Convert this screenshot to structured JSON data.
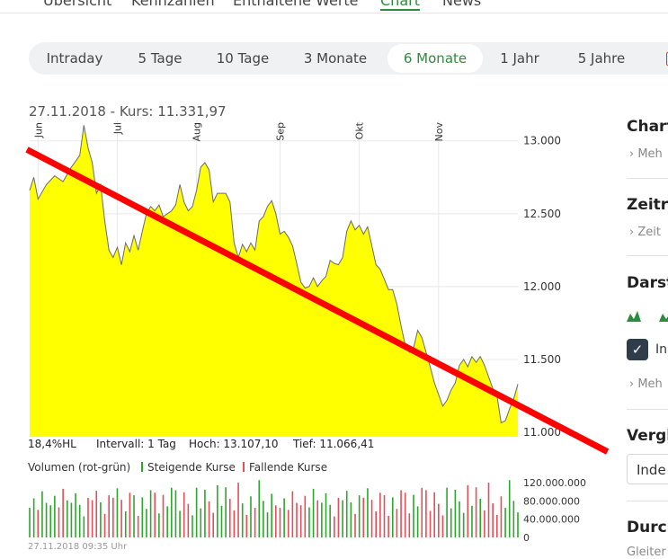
{
  "tabs": {
    "items": [
      "Übersicht",
      "Kennzahlen",
      "Enthaltene Werte",
      "Chart",
      "News"
    ],
    "active": "Chart"
  },
  "ranges": {
    "items": [
      "Intraday",
      "5 Tage",
      "10 Tage",
      "3 Monate",
      "6 Monate",
      "1 Jahr",
      "5 Jahre"
    ],
    "active": "6 Monate"
  },
  "kurs_label": "27.11.2018  - Kurs: 11.331,97",
  "stats": {
    "range": "18,4%HL",
    "interval": "Intervall: 1 Tag",
    "high": "Hoch: 13.107,10",
    "low": "Tief: 11.066,41"
  },
  "volume_legend": {
    "title": "Volumen (rot-grün)",
    "rising": "Steigende Kurse",
    "falling": "Fallende Kurse",
    "rising_color": "#2ea62e",
    "falling_color": "#e0505a"
  },
  "timestamp": "27.11.2018 09:35 Uhr",
  "sidebar": {
    "h1": "Chart",
    "s1": "Meh",
    "h2": "Zeitr",
    "s2": "Zeit",
    "h3": "Darst",
    "check_label": "In",
    "s3": "Meh",
    "h4": "Vergl",
    "select_value": "Inde",
    "h5": "Durch",
    "s5": "Gleiter"
  },
  "chart_data": {
    "type": "area",
    "colors": {
      "fill": "#ffff00",
      "line": "#6a6a6a",
      "trendline": "#ff0000"
    },
    "y_ticks": [
      "13.000",
      "12.500",
      "12.000",
      "11.500",
      "11.000"
    ],
    "y_tick_values": [
      13000,
      12500,
      12000,
      11500,
      11000
    ],
    "ylim": [
      10970,
      13140
    ],
    "month_labels": [
      "Jun",
      "Jul",
      "Aug",
      "Sep",
      "Okt",
      "Nov"
    ],
    "month_index": [
      2,
      21,
      40,
      60,
      79,
      98
    ],
    "n_points": 118,
    "price_keyframes": [
      [
        0,
        12660
      ],
      [
        1,
        12750
      ],
      [
        2,
        12600
      ],
      [
        4,
        12700
      ],
      [
        6,
        12760
      ],
      [
        8,
        12720
      ],
      [
        10,
        12820
      ],
      [
        12,
        12900
      ],
      [
        13,
        13107
      ],
      [
        14,
        12950
      ],
      [
        15,
        12850
      ],
      [
        16,
        12640
      ],
      [
        17,
        12700
      ],
      [
        18,
        12450
      ],
      [
        19,
        12250
      ],
      [
        20,
        12200
      ],
      [
        21,
        12270
      ],
      [
        22,
        12150
      ],
      [
        23,
        12300
      ],
      [
        24,
        12240
      ],
      [
        25,
        12350
      ],
      [
        26,
        12250
      ],
      [
        27,
        12380
      ],
      [
        28,
        12500
      ],
      [
        29,
        12550
      ],
      [
        30,
        12520
      ],
      [
        31,
        12560
      ],
      [
        32,
        12480
      ],
      [
        33,
        12500
      ],
      [
        34,
        12520
      ],
      [
        35,
        12560
      ],
      [
        36,
        12700
      ],
      [
        37,
        12580
      ],
      [
        38,
        12520
      ],
      [
        39,
        12550
      ],
      [
        40,
        12660
      ],
      [
        41,
        12820
      ],
      [
        42,
        12850
      ],
      [
        43,
        12800
      ],
      [
        44,
        12580
      ],
      [
        45,
        12640
      ],
      [
        46,
        12640
      ],
      [
        47,
        12640
      ],
      [
        48,
        12580
      ],
      [
        49,
        12300
      ],
      [
        50,
        12200
      ],
      [
        51,
        12290
      ],
      [
        52,
        12240
      ],
      [
        53,
        12300
      ],
      [
        54,
        12250
      ],
      [
        55,
        12450
      ],
      [
        56,
        12480
      ],
      [
        57,
        12550
      ],
      [
        58,
        12590
      ],
      [
        59,
        12500
      ],
      [
        60,
        12360
      ],
      [
        61,
        12380
      ],
      [
        62,
        12340
      ],
      [
        63,
        12280
      ],
      [
        64,
        12160
      ],
      [
        65,
        12030
      ],
      [
        66,
        11990
      ],
      [
        67,
        12000
      ],
      [
        68,
        12060
      ],
      [
        69,
        12000
      ],
      [
        70,
        12040
      ],
      [
        71,
        12070
      ],
      [
        72,
        12180
      ],
      [
        73,
        12160
      ],
      [
        74,
        12150
      ],
      [
        75,
        12200
      ],
      [
        76,
        12380
      ],
      [
        77,
        12450
      ],
      [
        78,
        12390
      ],
      [
        79,
        12420
      ],
      [
        80,
        12360
      ],
      [
        81,
        12410
      ],
      [
        82,
        12280
      ],
      [
        83,
        12150
      ],
      [
        84,
        12120
      ],
      [
        85,
        12050
      ],
      [
        86,
        11980
      ],
      [
        87,
        11980
      ],
      [
        88,
        11880
      ],
      [
        89,
        11730
      ],
      [
        90,
        11600
      ],
      [
        91,
        11550
      ],
      [
        92,
        11580
      ],
      [
        93,
        11700
      ],
      [
        94,
        11650
      ],
      [
        95,
        11550
      ],
      [
        96,
        11450
      ],
      [
        97,
        11340
      ],
      [
        98,
        11260
      ],
      [
        99,
        11180
      ],
      [
        100,
        11220
      ],
      [
        101,
        11290
      ],
      [
        102,
        11340
      ],
      [
        103,
        11460
      ],
      [
        104,
        11500
      ],
      [
        105,
        11450
      ],
      [
        106,
        11520
      ],
      [
        107,
        11480
      ],
      [
        108,
        11520
      ],
      [
        109,
        11460
      ],
      [
        110,
        11380
      ],
      [
        111,
        11300
      ],
      [
        112,
        11250
      ],
      [
        113,
        11066
      ],
      [
        114,
        11080
      ],
      [
        115,
        11160
      ],
      [
        116,
        11230
      ],
      [
        117,
        11331
      ]
    ],
    "trendline": [
      [
        0,
        12940
      ],
      [
        118,
        11040
      ]
    ],
    "volume": {
      "ticks": [
        "120.000.000",
        "80.000.000",
        "40.000.000",
        "0"
      ],
      "tick_values": [
        120000000,
        80000000,
        40000000,
        0
      ],
      "ylim": [
        0,
        130000000
      ]
    }
  }
}
